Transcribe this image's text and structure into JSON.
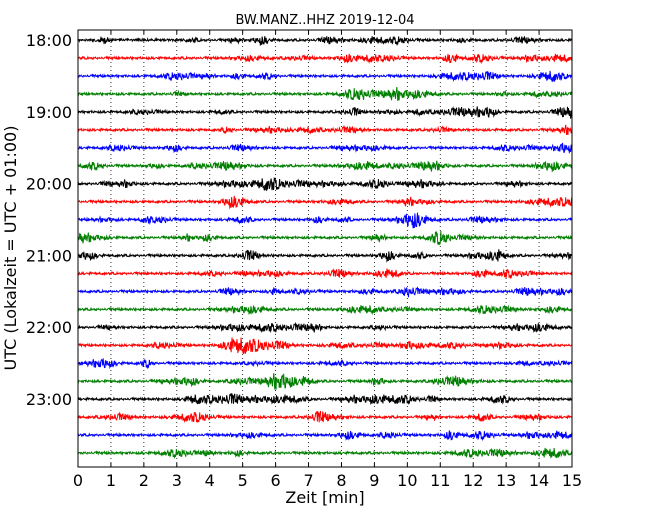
{
  "chart_data": {
    "type": "line",
    "title": "BW.MANZ..HHZ 2019-12-04",
    "xlabel": "Zeit  [min]",
    "ylabel": "UTC (Lokalzeit = UTC + 01:00)",
    "xlim": [
      0,
      15
    ],
    "x_ticks": [
      0,
      1,
      2,
      3,
      4,
      5,
      6,
      7,
      8,
      9,
      10,
      11,
      12,
      13,
      14,
      15
    ],
    "x_tick_labels": [
      "0",
      "1",
      "2",
      "3",
      "4",
      "5",
      "6",
      "7",
      "8",
      "9",
      "10",
      "11",
      "12",
      "13",
      "14",
      "15"
    ],
    "y_tick_labels": [
      "18:00",
      "19:00",
      "20:00",
      "21:00",
      "22:00",
      "23:00"
    ],
    "y_tick_trace_index": [
      0,
      4,
      8,
      12,
      16,
      20
    ],
    "grid": "vertical dotted lines at each minute",
    "trace_colors": [
      "#000000",
      "#ff0000",
      "#0000ff",
      "#007f00"
    ],
    "traces": [
      {
        "start": "18:00"
      },
      {
        "start": "18:15"
      },
      {
        "start": "18:30"
      },
      {
        "start": "18:45"
      },
      {
        "start": "19:00"
      },
      {
        "start": "19:15"
      },
      {
        "start": "19:30"
      },
      {
        "start": "19:45"
      },
      {
        "start": "20:00"
      },
      {
        "start": "20:15"
      },
      {
        "start": "20:30"
      },
      {
        "start": "20:45"
      },
      {
        "start": "21:00"
      },
      {
        "start": "21:15"
      },
      {
        "start": "21:30"
      },
      {
        "start": "21:45"
      },
      {
        "start": "22:00"
      },
      {
        "start": "22:15"
      },
      {
        "start": "22:30"
      },
      {
        "start": "22:45"
      },
      {
        "start": "23:00"
      },
      {
        "start": "23:15"
      },
      {
        "start": "23:30"
      },
      {
        "start": "23:45"
      }
    ]
  }
}
